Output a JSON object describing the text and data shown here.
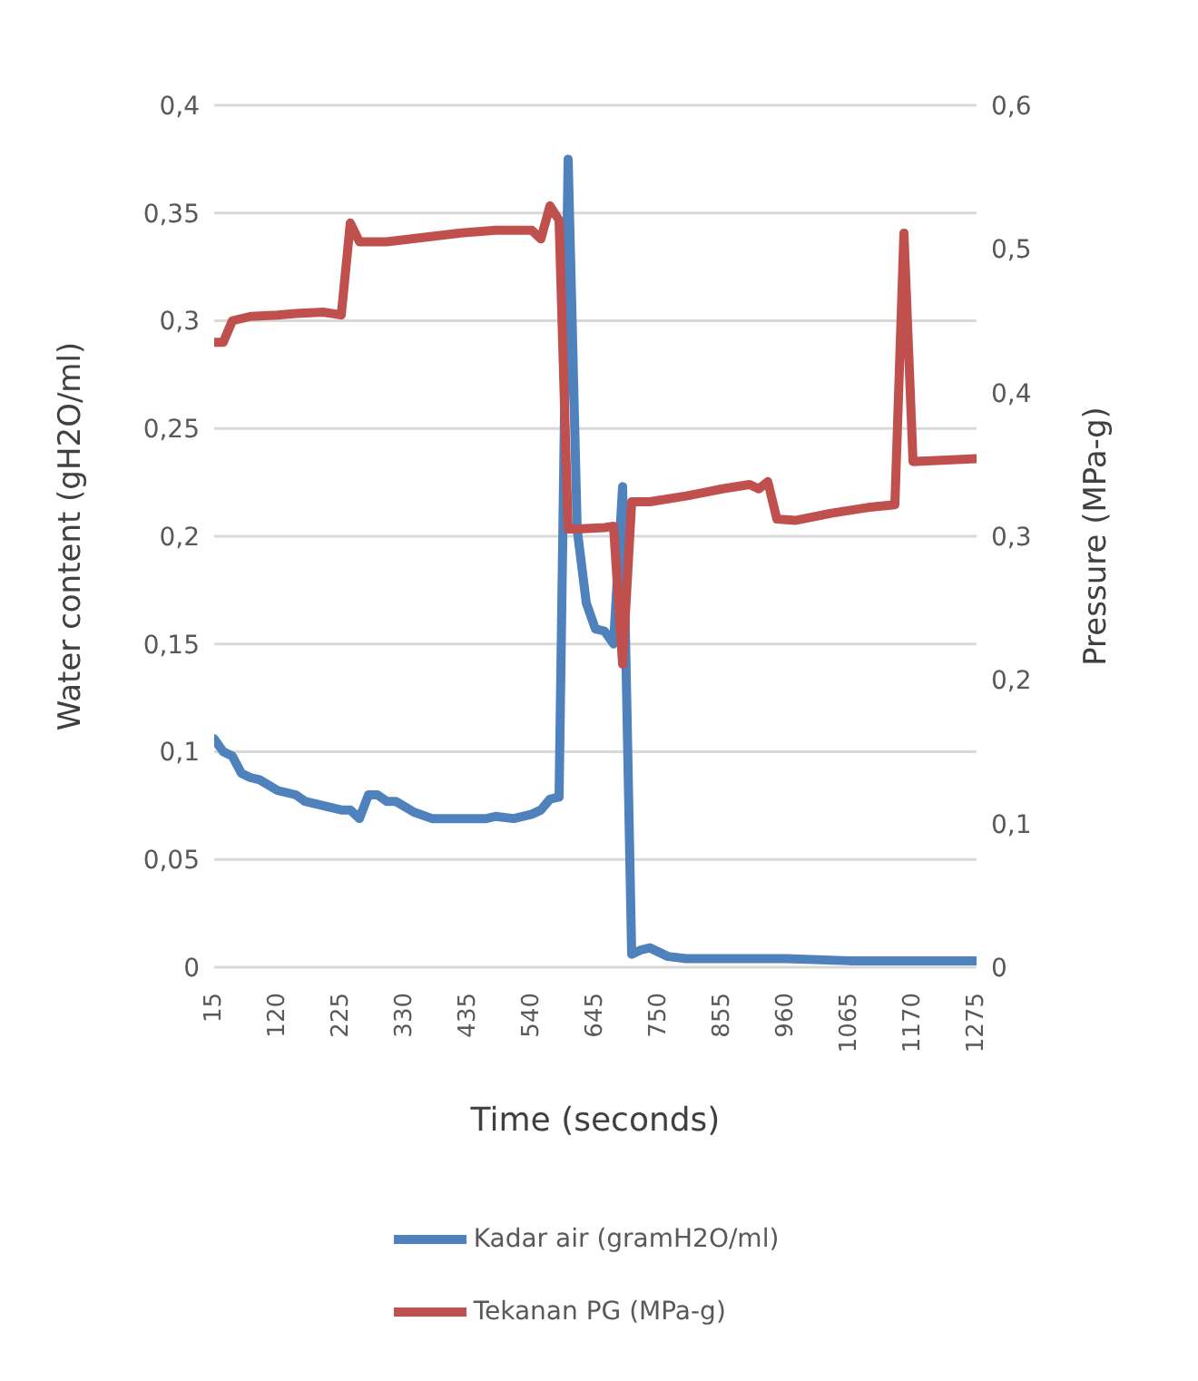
{
  "chart_data": {
    "type": "line",
    "xlabel": "Time (seconds)",
    "ylabel": "Water content (gH2O/ml)",
    "y2label": "Pressure (MPa-g)",
    "xlim": [
      15,
      1275
    ],
    "xticks": [
      15,
      120,
      225,
      330,
      435,
      540,
      645,
      750,
      855,
      960,
      1065,
      1170,
      1275
    ],
    "ylim": [
      0,
      0.4
    ],
    "yticks": [
      0,
      {
        "value": 0.05,
        "label": "0,05"
      },
      {
        "value": 0.1,
        "label": "0,1"
      },
      {
        "value": 0.15,
        "label": "0,15"
      },
      {
        "value": 0.2,
        "label": "0,2"
      },
      {
        "value": 0.25,
        "label": "0,25"
      },
      {
        "value": 0.3,
        "label": "0,3"
      },
      {
        "value": 0.35,
        "label": "0,35"
      },
      {
        "value": 0.4,
        "label": "0,4"
      }
    ],
    "y2lim": [
      0,
      0.6
    ],
    "y2ticks": [
      0,
      {
        "value": 0.1,
        "label": "0,1"
      },
      {
        "value": 0.2,
        "label": "0,2"
      },
      {
        "value": 0.3,
        "label": "0,3"
      },
      {
        "value": 0.4,
        "label": "0,4"
      },
      {
        "value": 0.5,
        "label": "0,5"
      },
      {
        "value": 0.6,
        "label": "0,6"
      }
    ],
    "grid": "y",
    "legend": "bottom",
    "marker": "none",
    "line_style": "solid",
    "series": [
      {
        "name": "Kadar air (gramH2O/ml)",
        "color": "#4f81bd",
        "x": [
          15,
          30,
          45,
          60,
          75,
          90,
          120,
          150,
          165,
          195,
          225,
          240,
          255,
          270,
          285,
          300,
          315,
          345,
          375,
          420,
          465,
          480,
          510,
          540,
          555,
          570,
          585,
          600,
          615,
          630,
          645,
          660,
          675,
          690,
          705,
          720,
          735,
          765,
          795,
          960,
          1065,
          1275
        ],
        "values": [
          0.106,
          0.1,
          0.098,
          0.09,
          0.088,
          0.087,
          0.082,
          0.08,
          0.077,
          0.075,
          0.073,
          0.073,
          0.069,
          0.08,
          0.08,
          0.077,
          0.077,
          0.072,
          0.069,
          0.069,
          0.069,
          0.07,
          0.069,
          0.071,
          0.073,
          0.078,
          0.079,
          0.375,
          0.203,
          0.169,
          0.157,
          0.156,
          0.15,
          0.223,
          0.006,
          0.008,
          0.009,
          0.005,
          0.004,
          0.004,
          0.003,
          0.003
        ]
      },
      {
        "name": "Tekanan PG (MPa-g)",
        "color": "#c0504d",
        "axis": "y2",
        "x": [
          15,
          30,
          45,
          75,
          120,
          150,
          195,
          225,
          240,
          255,
          300,
          360,
          420,
          480,
          540,
          555,
          570,
          585,
          600,
          615,
          660,
          675,
          690,
          705,
          735,
          795,
          855,
          900,
          915,
          930,
          945,
          975,
          1035,
          1095,
          1140,
          1155,
          1170,
          1275
        ],
        "values": [
          0.435,
          0.435,
          0.45,
          0.453,
          0.454,
          0.455,
          0.456,
          0.454,
          0.518,
          0.505,
          0.505,
          0.508,
          0.511,
          0.513,
          0.513,
          0.507,
          0.53,
          0.52,
          0.305,
          0.305,
          0.306,
          0.307,
          0.211,
          0.324,
          0.324,
          0.328,
          0.333,
          0.336,
          0.333,
          0.338,
          0.312,
          0.311,
          0.316,
          0.32,
          0.322,
          0.511,
          0.352,
          0.354
        ]
      }
    ]
  }
}
